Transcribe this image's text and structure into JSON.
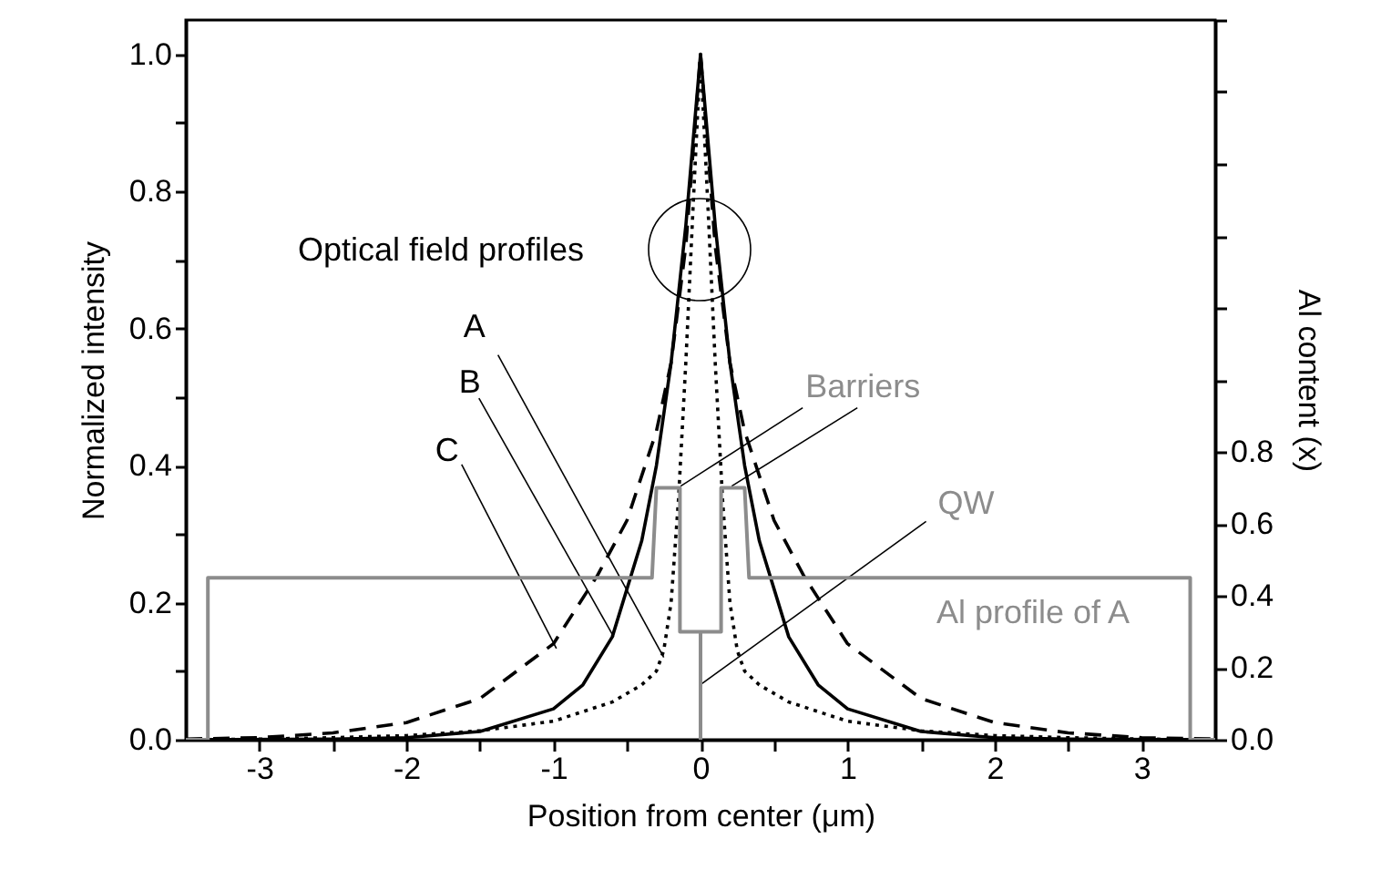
{
  "chart_data": {
    "type": "line",
    "xlabel": "Position from center (μm)",
    "ylabel": "Normalized intensity",
    "y2label": "Al content (x)",
    "xlim": [
      -3.5,
      3.5
    ],
    "xticks": [
      -3,
      {
        "value": -2.5,
        "label": null
      },
      -2,
      {
        "value": -1.5,
        "label": null
      },
      -1,
      {
        "value": -0.5,
        "label": null
      },
      0,
      {
        "value": 0.5,
        "label": null
      },
      1,
      {
        "value": 1.5,
        "label": null
      },
      2,
      {
        "value": 2.5,
        "label": null
      },
      3
    ],
    "ylim": [
      0,
      1.05
    ],
    "yticks": [
      {
        "value": 0,
        "label": "0.0"
      },
      {
        "value": 0.1,
        "label": null
      },
      {
        "value": 0.2,
        "label": "0.2"
      },
      {
        "value": 0.3,
        "label": null
      },
      {
        "value": 0.4,
        "label": "0.4"
      },
      {
        "value": 0.5,
        "label": null
      },
      {
        "value": 0.6,
        "label": "0.6"
      },
      {
        "value": 0.7,
        "label": null
      },
      {
        "value": 0.8,
        "label": "0.8"
      },
      {
        "value": 0.9,
        "label": null
      },
      {
        "value": 1.0,
        "label": "1.0"
      }
    ],
    "y2lim": [
      0,
      2.0
    ],
    "y2ticks": [
      {
        "value": 0,
        "label": "0.0"
      },
      {
        "value": 0.2,
        "label": "0.2"
      },
      {
        "value": 0.4,
        "label": "0.4"
      },
      {
        "value": 0.6,
        "label": "0.6"
      },
      {
        "value": 0.8,
        "label": "0.8"
      },
      {
        "value": 1.0,
        "label": null
      },
      {
        "value": 1.2,
        "label": null
      },
      {
        "value": 1.4,
        "label": null
      },
      {
        "value": 1.6,
        "label": null
      },
      {
        "value": 1.8,
        "label": null
      },
      {
        "value": 2.0,
        "label": null
      }
    ],
    "grid": false,
    "marker": "none",
    "series": [
      {
        "color": "#000000",
        "line_style": "solid",
        "x": [
          -3.5,
          -2.5,
          -2,
          -1.5,
          -1,
          -0.8,
          -0.6,
          -0.4,
          -0.3,
          -0.2,
          -0.1,
          0,
          0.1,
          0.2,
          0.3,
          0.4,
          0.6,
          0.8,
          1,
          1.5,
          2,
          2.5,
          3.5
        ],
        "values": [
          0,
          0.001,
          0.003,
          0.012,
          0.045,
          0.08,
          0.15,
          0.29,
          0.4,
          0.55,
          0.75,
          1,
          0.75,
          0.55,
          0.4,
          0.29,
          0.15,
          0.08,
          0.045,
          0.012,
          0.003,
          0.001,
          0
        ]
      },
      {
        "color": "#000000",
        "line_style": "dotted",
        "x": [
          -3.5,
          -3,
          -2.5,
          -2,
          -1.5,
          -1,
          -0.6,
          -0.4,
          -0.3,
          -0.25,
          -0.2,
          -0.15,
          -0.1,
          -0.05,
          0,
          0.05,
          0.1,
          0.15,
          0.2,
          0.25,
          0.3,
          0.4,
          0.6,
          1,
          1.5,
          2,
          2.5,
          3,
          3.5
        ],
        "values": [
          0,
          0.001,
          0.003,
          0.006,
          0.013,
          0.027,
          0.055,
          0.08,
          0.1,
          0.13,
          0.2,
          0.35,
          0.55,
          0.78,
          1,
          0.78,
          0.55,
          0.35,
          0.2,
          0.13,
          0.1,
          0.08,
          0.055,
          0.027,
          0.013,
          0.006,
          0.003,
          0.001,
          0
        ]
      },
      {
        "color": "#000000",
        "line_style": "dashed",
        "x": [
          -3.5,
          -3,
          -2.5,
          -2,
          -1.5,
          -1,
          -0.7,
          -0.5,
          -0.3,
          -0.2,
          -0.1,
          0,
          0.1,
          0.2,
          0.3,
          0.5,
          0.7,
          1,
          1.5,
          2,
          2.5,
          3,
          3.5
        ],
        "values": [
          0.001,
          0.003,
          0.01,
          0.025,
          0.06,
          0.14,
          0.24,
          0.32,
          0.45,
          0.55,
          0.72,
          1,
          0.72,
          0.55,
          0.45,
          0.32,
          0.24,
          0.14,
          0.06,
          0.025,
          0.01,
          0.003,
          0.001
        ]
      },
      {
        "color": "#8c8c8c",
        "line_style": "solid",
        "axis": "y2",
        "x": [
          -3.5,
          -3.35,
          -3.35,
          -0.33,
          -0.3,
          -0.14,
          -0.14,
          0,
          0,
          0,
          0.14,
          0.14,
          0.3,
          0.33,
          3.33,
          3.33,
          3.5
        ],
        "values": [
          0,
          0,
          0.45,
          0.45,
          0.7,
          0.7,
          0.3,
          0.3,
          0,
          0.3,
          0.3,
          0.7,
          0.7,
          0.45,
          0.45,
          0,
          0
        ]
      }
    ],
    "annotations": [
      {
        "text": "A",
        "x": -0.25,
        "y": 0.12
      },
      {
        "text": "B",
        "x": -0.59,
        "y": 0.15
      },
      {
        "text": "C",
        "x": -0.98,
        "y": 0.133
      },
      "Optical field profiles",
      {
        "text": "Barriers",
        "x": -0.135,
        "y": 0.37
      },
      {
        "text": "QW",
        "x": 0.01,
        "y": 0.082
      },
      "Al profile of A"
    ]
  }
}
